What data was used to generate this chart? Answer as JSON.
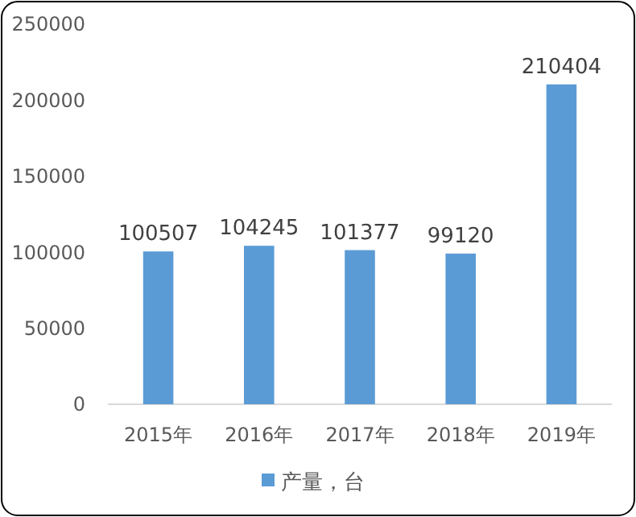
{
  "chart_data": {
    "type": "bar",
    "categories": [
      "2015年",
      "2016年",
      "2017年",
      "2018年",
      "2019年"
    ],
    "series": [
      {
        "name": "产量，台",
        "color": "#5b9bd5",
        "values": [
          100507,
          104245,
          101377,
          99120,
          210404
        ]
      }
    ],
    "ylim": [
      0,
      250000
    ],
    "yticks": [
      0,
      50000,
      100000,
      150000,
      200000,
      250000
    ],
    "grid": false,
    "legend": "bottom",
    "data_labels": true
  }
}
